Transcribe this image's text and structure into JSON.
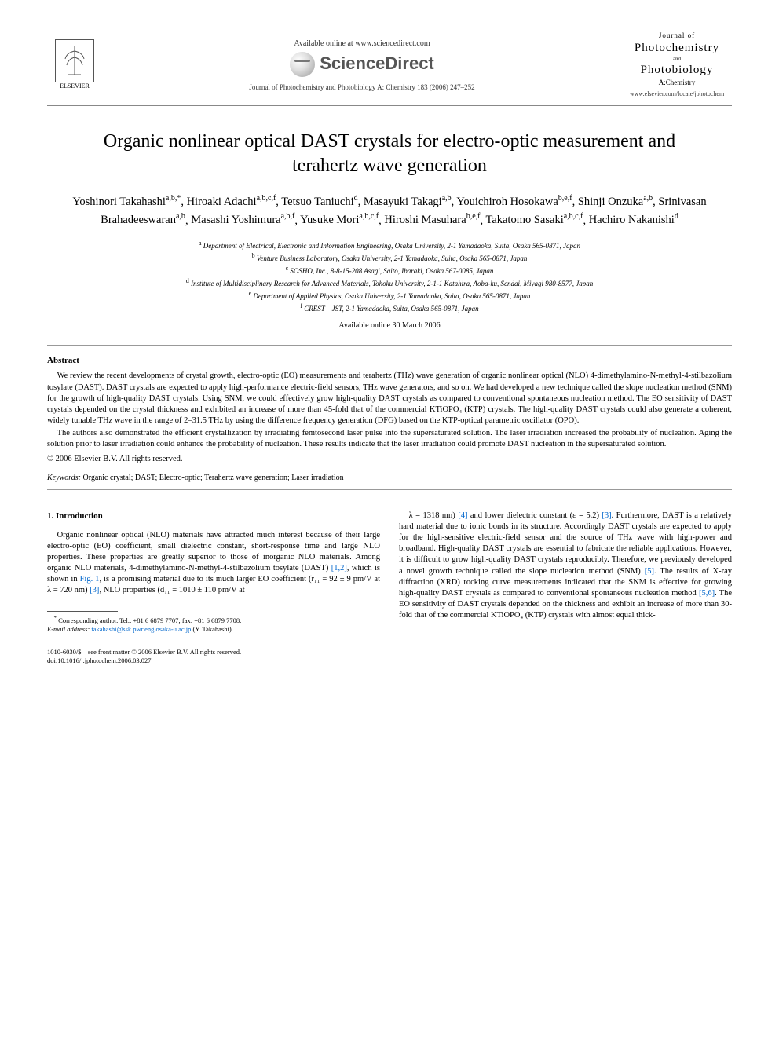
{
  "header": {
    "elsevier_label": "ELSEVIER",
    "available_online": "Available online at www.sciencedirect.com",
    "sciencedirect": "ScienceDirect",
    "journal_ref": "Journal of Photochemistry and Photobiology A: Chemistry 183 (2006) 247–252",
    "journal_box": {
      "line1": "Journal of",
      "line2": "Photochemistry",
      "and": "and",
      "line3": "Photobiology",
      "line4": "A:Chemistry",
      "url": "www.elsevier.com/locate/jphotochem"
    }
  },
  "title": "Organic nonlinear optical DAST crystals for electro-optic measurement and terahertz wave generation",
  "authors": [
    {
      "name": "Yoshinori Takahashi",
      "sup": "a,b,*"
    },
    {
      "name": "Hiroaki Adachi",
      "sup": "a,b,c,f"
    },
    {
      "name": "Tetsuo Taniuchi",
      "sup": "d"
    },
    {
      "name": "Masayuki Takagi",
      "sup": "a,b"
    },
    {
      "name": "Youichiroh Hosokawa",
      "sup": "b,e,f"
    },
    {
      "name": "Shinji Onzuka",
      "sup": "a,b"
    },
    {
      "name": "Srinivasan Brahadeeswaran",
      "sup": "a,b"
    },
    {
      "name": "Masashi Yoshimura",
      "sup": "a,b,f"
    },
    {
      "name": "Yusuke Mori",
      "sup": "a,b,c,f"
    },
    {
      "name": "Hiroshi Masuhara",
      "sup": "b,e,f"
    },
    {
      "name": "Takatomo Sasaki",
      "sup": "a,b,c,f"
    },
    {
      "name": "Hachiro Nakanishi",
      "sup": "d"
    }
  ],
  "affiliations": {
    "a": "Department of Electrical, Electronic and Information Engineering, Osaka University, 2-1 Yamadaoka, Suita, Osaka 565-0871, Japan",
    "b": "Venture Business Laboratory, Osaka University, 2-1 Yamadaoka, Suita, Osaka 565-0871, Japan",
    "c": "SOSHO, Inc., 8-8-15-208 Asagi, Saito, Ibaraki, Osaka 567-0085, Japan",
    "d": "Institute of Multidisciplinary Research for Advanced Materials, Tohoku University, 2-1-1 Katahira, Aoba-ku, Sendai, Miyagi 980-8577, Japan",
    "e": "Department of Applied Physics, Osaka University, 2-1 Yamadaoka, Suita, Osaka 565-0871, Japan",
    "f": "CREST – JST, 2-1 Yamadaoka, Suita, Osaka 565-0871, Japan"
  },
  "available_date": "Available online 30 March 2006",
  "abstract": {
    "heading": "Abstract",
    "p1": "We review the recent developments of crystal growth, electro-optic (EO) measurements and terahertz (THz) wave generation of organic nonlinear optical (NLO) 4-dimethylamino-N-methyl-4-stilbazolium tosylate (DAST). DAST crystals are expected to apply high-performance electric-field sensors, THz wave generators, and so on. We had developed a new technique called the slope nucleation method (SNM) for the growth of high-quality DAST crystals. Using SNM, we could effectively grow high-quality DAST crystals as compared to conventional spontaneous nucleation method. The EO sensitivity of DAST crystals depended on the crystal thickness and exhibited an increase of more than 45-fold that of the commercial KTiOPO₄ (KTP) crystals. The high-quality DAST crystals could also generate a coherent, widely tunable THz wave in the range of 2–31.5 THz by using the difference frequency generation (DFG) based on the KTP-optical parametric oscillator (OPO).",
    "p2": "The authors also demonstrated the efficient crystallization by irradiating femtosecond laser pulse into the supersaturated solution. The laser irradiation increased the probability of nucleation. Aging the solution prior to laser irradiation could enhance the probability of nucleation. These results indicate that the laser irradiation could promote DAST nucleation in the supersaturated solution.",
    "copyright": "© 2006 Elsevier B.V. All rights reserved."
  },
  "keywords": {
    "label": "Keywords:",
    "text": "Organic crystal; DAST; Electro-optic; Terahertz wave generation; Laser irradiation"
  },
  "section1": {
    "heading": "1. Introduction",
    "col1_part1": "Organic nonlinear optical (NLO) materials have attracted much interest because of their large electro-optic (EO) coefficient, small dielectric constant, short-response time and large NLO properties. These properties are greatly superior to those of inorganic NLO materials. Among organic NLO materials, 4-dimethylamino-N-methyl-4-stilbazolium tosylate (DAST) ",
    "ref12": "[1,2]",
    "col1_part2": ", which is shown in ",
    "fig1": "Fig. 1",
    "col1_part3": ", is a promising material due to its much larger EO coefficient (r₁₁ = 92 ± 9 pm/V at λ = 720 nm) ",
    "ref3a": "[3]",
    "col1_part4": ", NLO properties (d₁₁ = 1010 ± 110 pm/V at",
    "col2_part1": "λ = 1318 nm) ",
    "ref4": "[4]",
    "col2_part2": " and lower dielectric constant (ε = 5.2) ",
    "ref3b": "[3]",
    "col2_part3": ". Furthermore, DAST is a relatively hard material due to ionic bonds in its structure. Accordingly DAST crystals are expected to apply for the high-sensitive electric-field sensor and the source of THz wave with high-power and broadband. High-quality DAST crystals are essential to fabricate the reliable applications. However, it is difficult to grow high-quality DAST crystals reproducibly. Therefore, we previously developed a novel growth technique called the slope nucleation method (SNM) ",
    "ref5": "[5]",
    "col2_part4": ". The results of X-ray diffraction (XRD) rocking curve measurements indicated that the SNM is effective for growing high-quality DAST crystals as compared to conventional spontaneous nucleation method ",
    "ref56": "[5,6]",
    "col2_part5": ". The EO sensitivity of DAST crystals depended on the thickness and exhibit an increase of more than 30-fold that of the commercial KTiOPO₄ (KTP) crystals with almost equal thick-"
  },
  "corresponding": {
    "star": "*",
    "text": "Corresponding author. Tel.: +81 6 6879 7707; fax: +81 6 6879 7708.",
    "email_label": "E-mail address:",
    "email": "takahashi@ssk.pwr.eng.osaka-u.ac.jp",
    "email_who": "(Y. Takahashi)."
  },
  "footer": {
    "line1": "1010-6030/$ – see front matter © 2006 Elsevier B.V. All rights reserved.",
    "line2": "doi:10.1016/j.jphotochem.2006.03.027"
  },
  "colors": {
    "text": "#000000",
    "link": "#0066cc",
    "rule": "#999999",
    "bg": "#ffffff"
  }
}
